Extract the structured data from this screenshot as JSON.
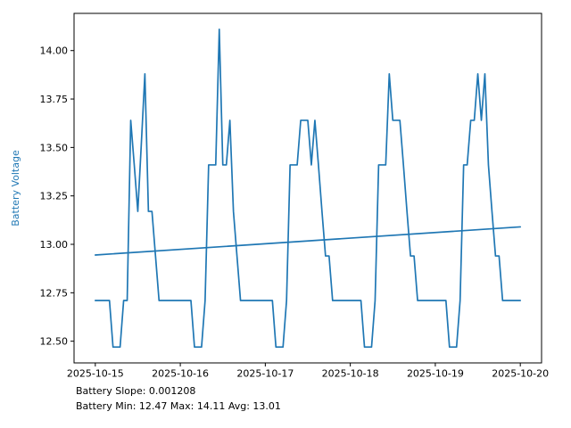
{
  "chart_data": {
    "type": "line",
    "title": "",
    "xlabel": "",
    "ylabel": "Battery Voltage",
    "ylabel_color": "#1f77b4",
    "line_color": "#1f77b4",
    "axis_color": "#000000",
    "background_color": "#ffffff",
    "grid": false,
    "legend": "none",
    "x_tick_labels": [
      "2025-10-15",
      "2025-10-16",
      "2025-10-17",
      "2025-10-18",
      "2025-10-19",
      "2025-10-20"
    ],
    "x_tick_days": [
      0,
      1,
      2,
      3,
      4,
      5
    ],
    "y_ticks": [
      12.5,
      12.75,
      13.0,
      13.25,
      13.5,
      13.75,
      14.0
    ],
    "xlim_days": [
      -0.25,
      5.25
    ],
    "ylim": [
      12.388,
      14.192
    ],
    "stats": {
      "slope": 0.001208,
      "min": 12.47,
      "max": 14.11,
      "avg": 13.01
    },
    "annotations": {
      "slope_line": "Battery Slope: 0.001208",
      "stats_line": "Battery Min: 12.47 Max: 14.11 Avg: 13.01"
    },
    "series": [
      {
        "name": "Battery Voltage",
        "start_date": "2025-10-15",
        "interval_hours": 1,
        "values": [
          12.71,
          12.71,
          12.71,
          12.71,
          12.71,
          12.47,
          12.47,
          12.47,
          12.71,
          12.71,
          13.64,
          13.41,
          13.17,
          13.52,
          13.88,
          13.17,
          13.17,
          12.94,
          12.71,
          12.71,
          12.71,
          12.71,
          12.71,
          12.71,
          12.71,
          12.71,
          12.71,
          12.71,
          12.47,
          12.47,
          12.47,
          12.71,
          13.41,
          13.41,
          13.41,
          14.11,
          13.41,
          13.41,
          13.64,
          13.17,
          12.94,
          12.71,
          12.71,
          12.71,
          12.71,
          12.71,
          12.71,
          12.71,
          12.71,
          12.71,
          12.71,
          12.47,
          12.47,
          12.47,
          12.71,
          13.41,
          13.41,
          13.41,
          13.64,
          13.64,
          13.64,
          13.41,
          13.64,
          13.41,
          13.17,
          12.94,
          12.94,
          12.71,
          12.71,
          12.71,
          12.71,
          12.71,
          12.71,
          12.71,
          12.71,
          12.71,
          12.47,
          12.47,
          12.47,
          12.71,
          13.41,
          13.41,
          13.41,
          13.88,
          13.64,
          13.64,
          13.64,
          13.41,
          13.17,
          12.94,
          12.94,
          12.71,
          12.71,
          12.71,
          12.71,
          12.71,
          12.71,
          12.71,
          12.71,
          12.71,
          12.47,
          12.47,
          12.47,
          12.71,
          13.41,
          13.41,
          13.64,
          13.64,
          13.88,
          13.64,
          13.88,
          13.41,
          13.17,
          12.94,
          12.94,
          12.71,
          12.71,
          12.71,
          12.71,
          12.71,
          12.71
        ]
      },
      {
        "name": "Trend",
        "x_hours": [
          0,
          120
        ],
        "values": [
          12.945,
          13.09
        ]
      }
    ]
  }
}
